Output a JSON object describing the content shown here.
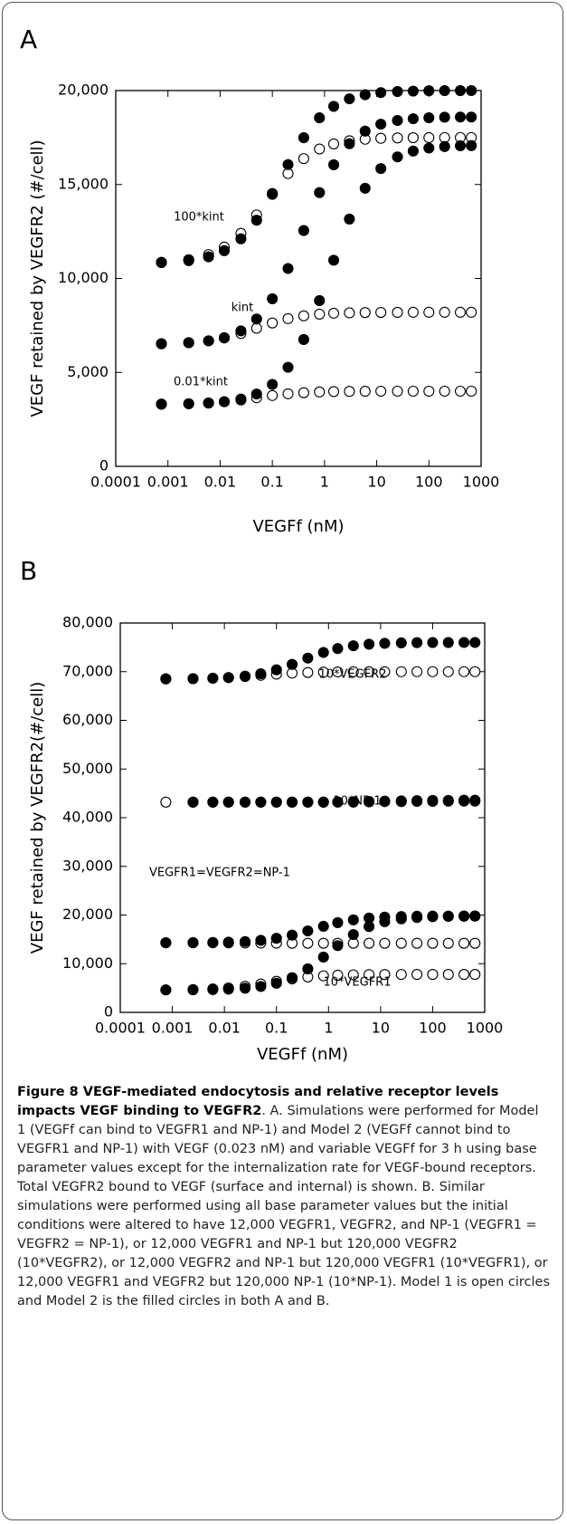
{
  "chart_data": [
    {
      "type": "scatter",
      "label": "A",
      "x_label": "VEGFf (nM)",
      "y_label": "VEGF retained by VEGFR2 (#/cell)",
      "xscale": "log",
      "xlim": [
        0.0001,
        1000
      ],
      "xticks": [
        0.0001,
        0.001,
        0.01,
        0.1,
        1,
        10,
        100,
        1000
      ],
      "ylim": [
        0,
        20000
      ],
      "yticks": [
        0,
        {
          "value": 5000,
          "label": "5,000"
        },
        {
          "value": 10000,
          "label": "10,000"
        },
        {
          "value": 15000,
          "label": "15,000"
        },
        {
          "value": 20000,
          "label": "20,000"
        }
      ],
      "annotations": [
        "100*kint",
        "kint",
        "0.01*kint"
      ],
      "x": [
        0.00075,
        0.0025,
        0.006,
        0.012,
        0.025,
        0.05,
        0.1,
        0.2,
        0.4,
        0.8,
        1.5,
        3,
        6,
        12,
        25,
        50,
        100,
        200,
        400,
        650
      ],
      "series": [
        {
          "color": "#000000",
          "marker": "open",
          "values": [
            10860,
            11000,
            11270,
            11670,
            12400,
            13380,
            14520,
            15580,
            16380,
            16890,
            17160,
            17330,
            17410,
            17460,
            17480,
            17490,
            17495,
            17500,
            17500,
            17500
          ]
        },
        {
          "color": "#000000",
          "marker": "open",
          "values": [
            6530,
            6580,
            6680,
            6830,
            7070,
            7350,
            7630,
            7860,
            8010,
            8100,
            8150,
            8170,
            8185,
            8190,
            8195,
            8200,
            8200,
            8200,
            8200,
            8200
          ]
        },
        {
          "color": "#000000",
          "marker": "open",
          "values": [
            3310,
            3330,
            3370,
            3440,
            3530,
            3650,
            3770,
            3860,
            3920,
            3960,
            3980,
            3990,
            3995,
            4000,
            4000,
            4000,
            4000,
            4000,
            4000,
            4000
          ]
        },
        {
          "color": "#000000",
          "marker": "filled",
          "values": [
            10846,
            10950,
            11150,
            11480,
            12110,
            13100,
            14480,
            16060,
            17490,
            18550,
            19160,
            19560,
            19780,
            19890,
            19950,
            19970,
            19990,
            19995,
            19998,
            20000
          ]
        },
        {
          "color": "#000000",
          "marker": "filled",
          "values": [
            6520,
            6580,
            6680,
            6850,
            7210,
            7840,
            8920,
            10530,
            12550,
            14570,
            16050,
            17170,
            17840,
            18210,
            18410,
            18500,
            18550,
            18580,
            18590,
            18590
          ]
        },
        {
          "color": "#000000",
          "marker": "filled",
          "values": [
            3310,
            3330,
            3370,
            3440,
            3580,
            3850,
            4360,
            5270,
            6750,
            8820,
            10970,
            13160,
            14800,
            15850,
            16470,
            16780,
            16940,
            17020,
            17060,
            17070
          ]
        }
      ]
    },
    {
      "type": "scatter",
      "label": "B",
      "x_label": "VEGFf (nM)",
      "y_label": "VEGF retained by VEGFR2(#/cell)",
      "xscale": "log",
      "xlim": [
        0.0001,
        1000
      ],
      "xticks": [
        0.0001,
        0.001,
        0.01,
        0.1,
        1,
        10,
        100,
        1000
      ],
      "ylim": [
        0,
        80000
      ],
      "yticks": [
        0,
        {
          "value": 10000,
          "label": "10,000"
        },
        {
          "value": 20000,
          "label": "20,000"
        },
        {
          "value": 30000,
          "label": "30,000"
        },
        {
          "value": 40000,
          "label": "40,000"
        },
        {
          "value": 50000,
          "label": "50,000"
        },
        {
          "value": 60000,
          "label": "60,000"
        },
        {
          "value": 70000,
          "label": "70,000"
        },
        {
          "value": 80000,
          "label": "80,000"
        }
      ],
      "annotations": [
        "10*VEGFR2",
        "10*NP-1",
        "VEGFR1=VEGFR2=NP-1",
        "10*VEGFR1"
      ],
      "x": [
        0.00075,
        0.0025,
        0.006,
        0.012,
        0.025,
        0.05,
        0.1,
        0.2,
        0.4,
        0.8,
        1.5,
        3,
        6,
        12,
        25,
        50,
        100,
        200,
        400,
        650
      ],
      "series": [
        {
          "color": "#000000",
          "marker": "open",
          "values": [
            68520,
            68570,
            68660,
            68790,
            69000,
            69250,
            69500,
            69700,
            69830,
            69910,
            69950,
            69980,
            69990,
            69990,
            70000,
            70000,
            70000,
            70000,
            70000,
            70000
          ]
        },
        {
          "color": "#000000",
          "marker": "open",
          "values": [
            43200,
            43200,
            43200,
            43200,
            43200,
            43200,
            43200,
            43200,
            43200,
            43200,
            43200,
            43200,
            43250,
            43300,
            43300,
            43350,
            43350,
            43400,
            43400,
            43400
          ]
        },
        {
          "color": "#000000",
          "marker": "open",
          "values": [
            14300,
            14300,
            14300,
            14280,
            14260,
            14240,
            14220,
            14200,
            14200,
            14200,
            14200,
            14200,
            14200,
            14200,
            14200,
            14200,
            14200,
            14200,
            14200,
            14200
          ]
        },
        {
          "color": "#000000",
          "marker": "open",
          "values": [
            4630,
            4700,
            4820,
            5020,
            5360,
            5830,
            6380,
            6880,
            7270,
            7510,
            7640,
            7720,
            7760,
            7780,
            7790,
            7800,
            7800,
            7800,
            7800,
            7800
          ]
        },
        {
          "color": "#000000",
          "marker": "filled",
          "values": [
            68520,
            68560,
            68650,
            68790,
            69080,
            69570,
            70380,
            71500,
            72790,
            73950,
            74750,
            75320,
            75640,
            75820,
            75910,
            75960,
            75980,
            75990,
            76000,
            76000
          ]
        },
        {
          "color": "#000000",
          "marker": "filled",
          "values": [
            null,
            43200,
            43200,
            43200,
            43200,
            43200,
            43200,
            43200,
            43200,
            43200,
            43250,
            43300,
            43350,
            43400,
            43450,
            43500,
            43550,
            43550,
            43600,
            43600
          ]
        },
        {
          "color": "#000000",
          "marker": "filled",
          "values": [
            14310,
            14330,
            14360,
            14430,
            14560,
            14800,
            15220,
            15870,
            16740,
            17680,
            18430,
            19010,
            19380,
            19580,
            19690,
            19750,
            19770,
            19790,
            19800,
            19800
          ]
        },
        {
          "color": "#000000",
          "marker": "filled",
          "values": [
            4610,
            4640,
            4690,
            4780,
            4970,
            5320,
            5980,
            7130,
            8940,
            11360,
            13720,
            16000,
            17630,
            18630,
            19220,
            19500,
            19650,
            19720,
            19760,
            19780
          ]
        }
      ]
    }
  ],
  "caption": {
    "title": "Figure 8 VEGF-mediated endocytosis and relative receptor levels impacts VEGF binding to VEGFR2",
    "text": ". A. Simulations were performed for Model 1 (VEGFf can bind to VEGFR1 and NP-1) and Model 2 (VEGFf cannot bind to VEGFR1 and NP-1) with VEGF (0.023 nM) and variable VEGFf for 3 h using base parameter values except for the internalization rate for VEGF-bound receptors. Total VEGFR2 bound to VEGF (surface and internal) is shown. B. Similar simulations were performed using all base parameter values but the initial conditions were altered to have 12,000 VEGFR1, VEGFR2, and NP-1 (VEGFR1 = VEGFR2 = NP-1), or 12,000 VEGFR1 and NP-1 but 120,000 VEGFR2 (10*VEGFR2), or 12,000 VEGFR2 and NP-1 but 120,000 VEGFR1 (10*VEGFR1), or 12,000 VEGFR1 and VEGFR2 but 120,000 NP-1 (10*NP-1). Model 1 is open circles and Model 2 is the filled circles in both A and B."
  }
}
